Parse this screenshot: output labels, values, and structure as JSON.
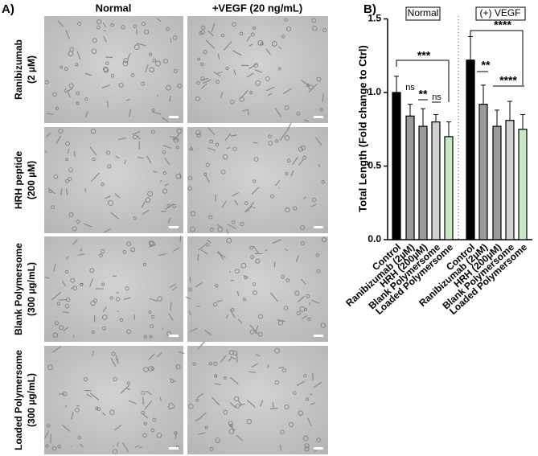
{
  "panel_a": {
    "label": "A)",
    "columns": [
      "Normal",
      "+VEGF (20 ng/mL)"
    ],
    "rows": [
      [
        "Ranibizumab",
        "(2 µM)"
      ],
      [
        "HRH peptide",
        "(200 µM)"
      ],
      [
        "Blank Polymersome",
        "(300  µg/mL)"
      ],
      [
        "Loaded Polymersome",
        "(300  µg/mL)"
      ]
    ]
  },
  "chart_data": {
    "type": "bar",
    "panel_label": "B)",
    "ylabel": "Total Length (Fold change to Ctrl)",
    "groups": [
      "Normal",
      "(+) VEGF"
    ],
    "categories": [
      "Control",
      "Ranibizumab (2µM)",
      "HRH (200µM)",
      "Blank Polymersome",
      "Loaded Polymersome",
      "Control",
      "Ranibizumab (2µM)",
      "HRH (200µM)",
      "Blank Polymersome",
      "Loaded Polymersome"
    ],
    "values": [
      1.0,
      0.84,
      0.77,
      0.8,
      0.7,
      1.22,
      0.92,
      0.77,
      0.81,
      0.75
    ],
    "errors": [
      0.11,
      0.08,
      0.12,
      0.05,
      0.1,
      0.16,
      0.13,
      0.11,
      0.13,
      0.1
    ],
    "colors": [
      "#000000",
      "#9a9a9a",
      "#9a9a9a",
      "#d0d0d0",
      "#c6e8c6",
      "#000000",
      "#9a9a9a",
      "#9a9a9a",
      "#d0d0d0",
      "#c6e8c6"
    ],
    "ylim": [
      0,
      1.5
    ],
    "yticks": [
      {
        "value": 0,
        "label": "0.0"
      },
      {
        "value": 0.5,
        "label": "0.5"
      },
      {
        "value": 1,
        "label": "1.0"
      },
      {
        "value": 1.5,
        "label": "1.5"
      }
    ],
    "annotations": [
      "***",
      "ns",
      "**",
      "ns",
      "****",
      "**",
      "****"
    ]
  }
}
